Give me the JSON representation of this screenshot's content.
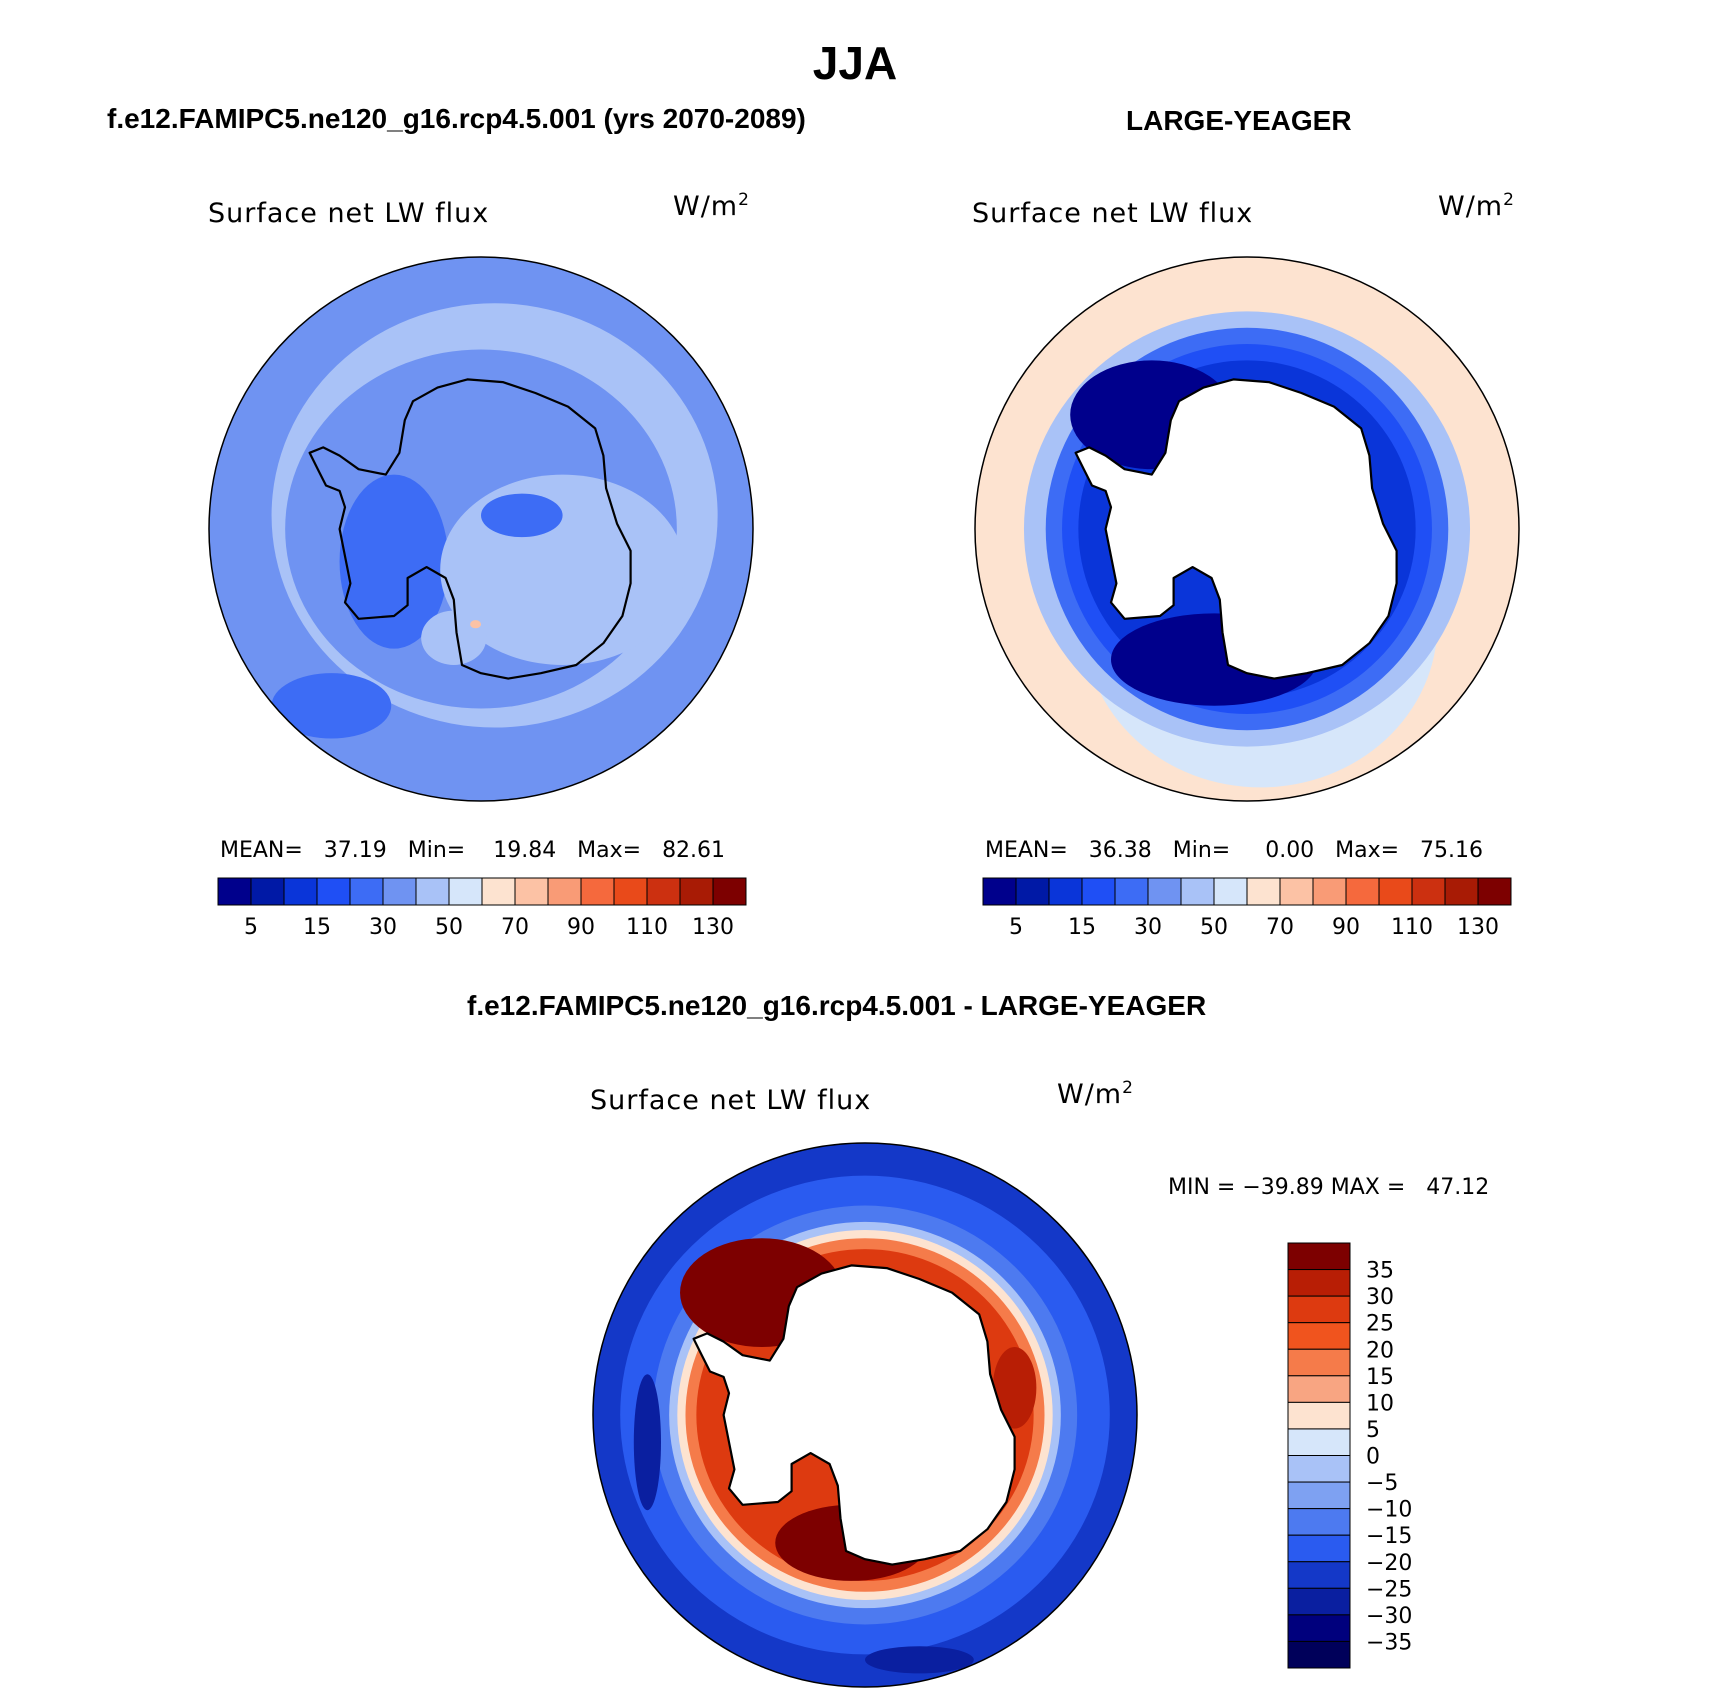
{
  "title": "JJA",
  "panels": [
    {
      "case_title": "f.e12.FAMIPC5.ne120_g16.rcp4.5.001 (yrs 2070-2089)",
      "label": "Surface net LW flux",
      "units": "W/m",
      "units_exp": "2",
      "stats": "MEAN=   37.19   Min=    19.84   Max=   82.61",
      "colorbar_labels": [
        "5",
        "15",
        "30",
        "50",
        "70",
        "90",
        "110",
        "130"
      ]
    },
    {
      "case_title": "LARGE-YEAGER",
      "label": "Surface net LW flux",
      "units": "W/m",
      "units_exp": "2",
      "stats": "MEAN=   36.38   Min=     0.00   Max=   75.16",
      "colorbar_labels": [
        "5",
        "15",
        "30",
        "50",
        "70",
        "90",
        "110",
        "130"
      ]
    }
  ],
  "diff": {
    "case_title": "f.e12.FAMIPC5.ne120_g16.rcp4.5.001 - LARGE-YEAGER",
    "label": "Surface net LW flux",
    "units": "W/m",
    "units_exp": "2",
    "stats": "MIN = −39.89 MAX =   47.12",
    "colorbar_labels": [
      "35",
      "30",
      "25",
      "20",
      "15",
      "10",
      "5",
      "0",
      "−5",
      "−10",
      "−15",
      "−20",
      "−25",
      "−30",
      "−35"
    ]
  },
  "palettes": {
    "abs": [
      "#00008c",
      "#0019a6",
      "#0a35d9",
      "#1f4ff5",
      "#3d6cf5",
      "#6f93f2",
      "#a9c2f7",
      "#d6e6fa",
      "#fde3d0",
      "#fcc2a5",
      "#f99b76",
      "#f5693d",
      "#e94a1a",
      "#cc3010",
      "#a81b05",
      "#7d0000"
    ],
    "diff": [
      "#7d0000",
      "#b81e05",
      "#dd3a10",
      "#f0541e",
      "#f57b4a",
      "#f8a582",
      "#fde3d0",
      "#d6e6fa",
      "#a9c2f7",
      "#7ea1f2",
      "#4d7af0",
      "#2a5bf0",
      "#1438c8",
      "#0a1fa0",
      "#00007d"
    ]
  }
}
